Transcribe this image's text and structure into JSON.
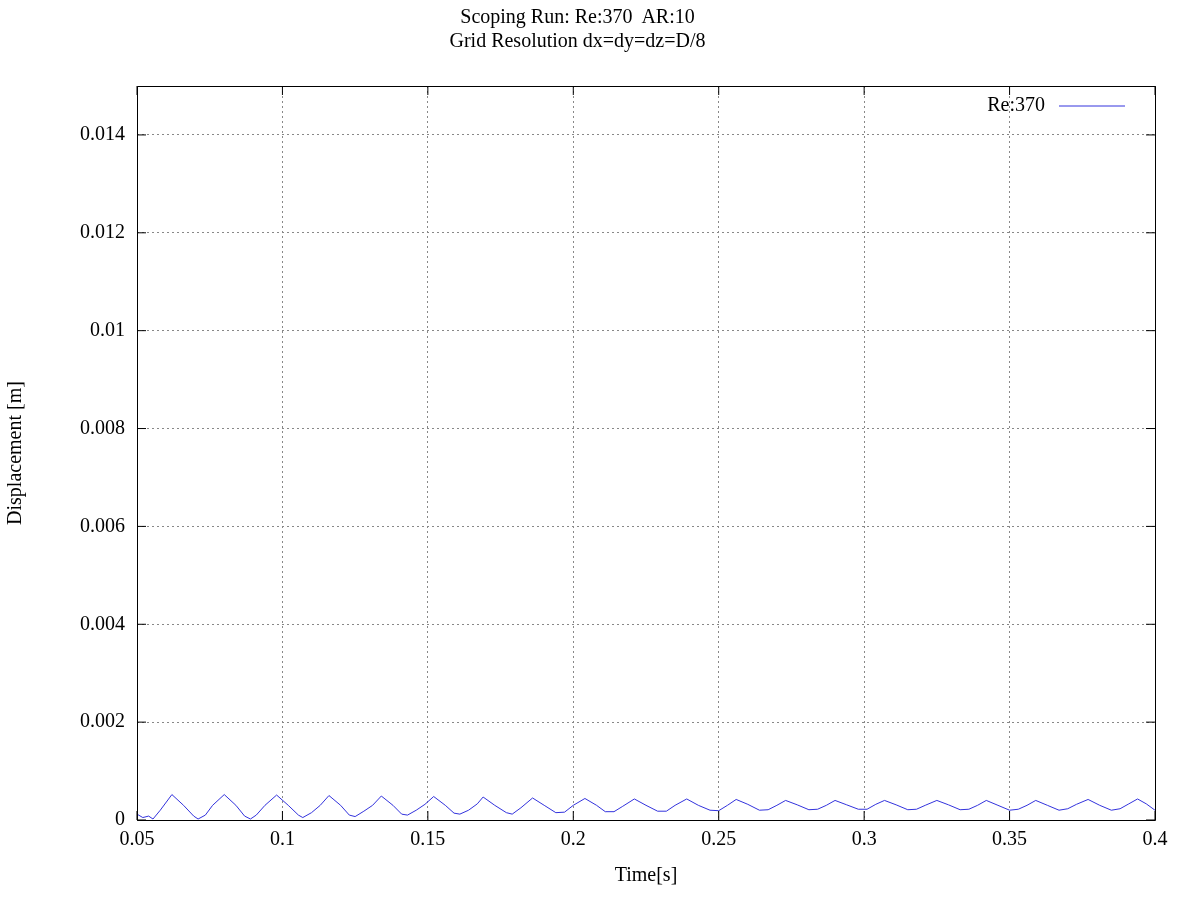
{
  "chart_data": {
    "type": "line",
    "title": "Scoping Run: Re:370  AR:10",
    "subtitle": "Grid Resolution dx=dy=dz=D/8",
    "xlabel": "Time[s]",
    "ylabel": "Displacement [m]",
    "xlim": [
      0.05,
      0.4
    ],
    "xticks": [
      0.05,
      0.1,
      0.15,
      0.2,
      0.25,
      0.3,
      0.35,
      0.4
    ],
    "ylim": [
      0,
      0.015
    ],
    "yticks": [
      0,
      0.002,
      0.004,
      0.006,
      0.008,
      0.01,
      0.012,
      0.014
    ],
    "grid": true,
    "legend": "top right",
    "marker": "none",
    "line_style": "solid",
    "series": [
      {
        "name": "Re:370",
        "color": "#3333dd",
        "x": [
          0.05,
          0.052,
          0.054,
          0.0555,
          0.058,
          0.062,
          0.066,
          0.0695,
          0.071,
          0.0735,
          0.076,
          0.08,
          0.084,
          0.087,
          0.089,
          0.091,
          0.094,
          0.098,
          0.102,
          0.1055,
          0.107,
          0.11,
          0.113,
          0.116,
          0.12,
          0.123,
          0.125,
          0.128,
          0.131,
          0.134,
          0.138,
          0.141,
          0.143,
          0.146,
          0.149,
          0.152,
          0.156,
          0.159,
          0.161,
          0.164,
          0.167,
          0.169,
          0.173,
          0.177,
          0.179,
          0.182,
          0.186,
          0.19,
          0.194,
          0.197,
          0.2,
          0.204,
          0.208,
          0.211,
          0.214,
          0.217,
          0.221,
          0.225,
          0.229,
          0.232,
          0.235,
          0.239,
          0.243,
          0.247,
          0.25,
          0.253,
          0.256,
          0.26,
          0.264,
          0.267,
          0.27,
          0.273,
          0.277,
          0.281,
          0.284,
          0.287,
          0.29,
          0.294,
          0.298,
          0.301,
          0.304,
          0.307,
          0.311,
          0.315,
          0.318,
          0.321,
          0.325,
          0.329,
          0.333,
          0.336,
          0.339,
          0.342,
          0.346,
          0.35,
          0.353,
          0.356,
          0.359,
          0.363,
          0.367,
          0.37,
          0.373,
          0.377,
          0.381,
          0.385,
          0.388,
          0.391,
          0.394,
          0.397,
          0.4
        ],
        "values": [
          0.00012,
          5e-05,
          8e-05,
          2e-05,
          0.0002,
          0.00052,
          0.0003,
          8e-05,
          2e-05,
          0.0001,
          0.0003,
          0.00052,
          0.0003,
          8e-05,
          2e-05,
          0.0001,
          0.0003,
          0.00051,
          0.0003,
          0.0001,
          5e-05,
          0.00015,
          0.0003,
          0.0005,
          0.0003,
          0.0001,
          7e-05,
          0.00018,
          0.0003,
          0.00049,
          0.0003,
          0.00012,
          0.0001,
          0.0002,
          0.00032,
          0.00048,
          0.0003,
          0.00014,
          0.00012,
          0.0002,
          0.00033,
          0.00047,
          0.0003,
          0.00015,
          0.00012,
          0.00025,
          0.00045,
          0.0003,
          0.00015,
          0.00016,
          0.0003,
          0.00044,
          0.0003,
          0.00017,
          0.00017,
          0.00028,
          0.00043,
          0.0003,
          0.00018,
          0.00018,
          0.0003,
          0.00043,
          0.0003,
          0.0002,
          0.00019,
          0.0003,
          0.00042,
          0.00032,
          0.0002,
          0.00021,
          0.0003,
          0.0004,
          0.00031,
          0.00021,
          0.00022,
          0.0003,
          0.0004,
          0.00031,
          0.00022,
          0.00022,
          0.00032,
          0.0004,
          0.00031,
          0.00021,
          0.00022,
          0.0003,
          0.0004,
          0.00031,
          0.00021,
          0.00022,
          0.0003,
          0.0004,
          0.0003,
          0.0002,
          0.00022,
          0.0003,
          0.0004,
          0.0003,
          0.0002,
          0.00023,
          0.00032,
          0.00042,
          0.0003,
          0.0002,
          0.00023,
          0.00033,
          0.00043,
          0.00033,
          0.0002
        ]
      }
    ]
  }
}
